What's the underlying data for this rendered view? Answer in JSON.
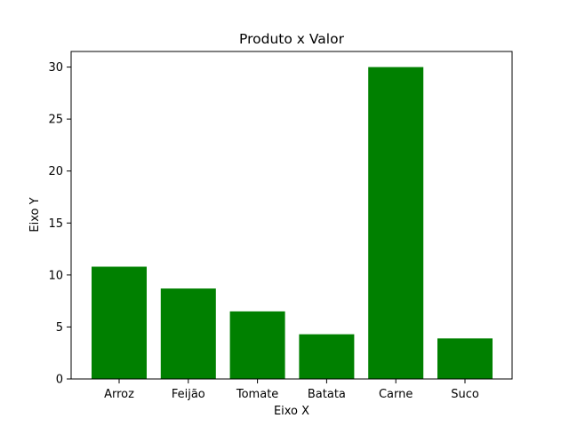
{
  "chart_data": {
    "type": "bar",
    "title": "Produto x Valor",
    "xlabel": "Eixo X",
    "ylabel": "Eixo Y",
    "categories": [
      "Arroz",
      "Feijão",
      "Tomate",
      "Batata",
      "Carne",
      "Suco"
    ],
    "values": [
      10.8,
      8.7,
      6.5,
      4.3,
      30.0,
      3.9
    ],
    "ylim": [
      0,
      31.5
    ],
    "yticks": [
      0,
      5,
      10,
      15,
      20,
      25,
      30
    ],
    "bar_color": "#008000",
    "grid": false,
    "legend": "none"
  }
}
